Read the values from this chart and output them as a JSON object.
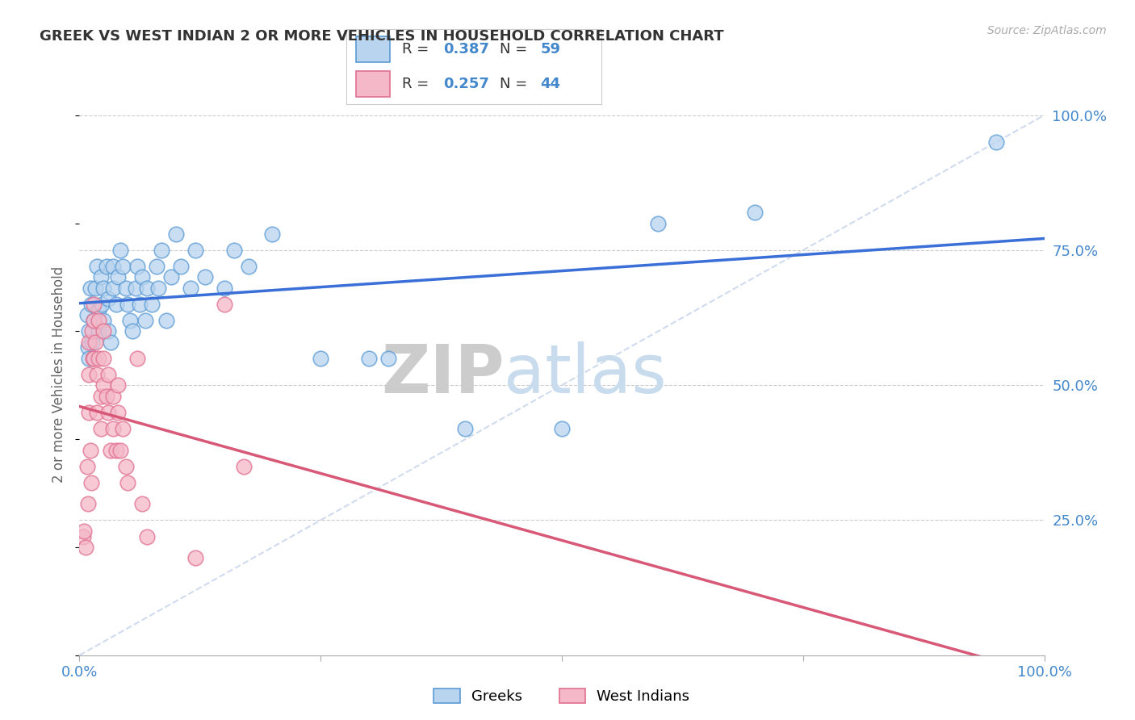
{
  "title": "GREEK VS WEST INDIAN 2 OR MORE VEHICLES IN HOUSEHOLD CORRELATION CHART",
  "source": "Source: ZipAtlas.com",
  "ylabel": "2 or more Vehicles in Household",
  "legend_greek": "Greeks",
  "legend_west": "West Indians",
  "r_greek": "0.387",
  "n_greek": "59",
  "r_west": "0.257",
  "n_west": "44",
  "color_greek_fill": "#B8D4EE",
  "color_greek_edge": "#5B9BD5",
  "color_west_fill": "#F4B8C8",
  "color_west_edge": "#E07090",
  "line_greek_color": "#3A6FD8",
  "line_west_color": "#D85878",
  "line_diag_color": "#D0DCEE",
  "greek_x": [
    0.008,
    0.009,
    0.01,
    0.01,
    0.011,
    0.012,
    0.013,
    0.015,
    0.016,
    0.018,
    0.02,
    0.02,
    0.022,
    0.023,
    0.025,
    0.025,
    0.028,
    0.03,
    0.03,
    0.032,
    0.035,
    0.035,
    0.038,
    0.04,
    0.042,
    0.045,
    0.048,
    0.05,
    0.052,
    0.055,
    0.058,
    0.06,
    0.062,
    0.065,
    0.068,
    0.07,
    0.075,
    0.08,
    0.082,
    0.085,
    0.09,
    0.095,
    0.1,
    0.105,
    0.115,
    0.12,
    0.13,
    0.15,
    0.16,
    0.175,
    0.2,
    0.25,
    0.3,
    0.32,
    0.4,
    0.5,
    0.6,
    0.7,
    0.95
  ],
  "greek_y": [
    0.63,
    0.57,
    0.6,
    0.55,
    0.68,
    0.65,
    0.58,
    0.62,
    0.68,
    0.72,
    0.6,
    0.64,
    0.7,
    0.65,
    0.62,
    0.68,
    0.72,
    0.66,
    0.6,
    0.58,
    0.72,
    0.68,
    0.65,
    0.7,
    0.75,
    0.72,
    0.68,
    0.65,
    0.62,
    0.6,
    0.68,
    0.72,
    0.65,
    0.7,
    0.62,
    0.68,
    0.65,
    0.72,
    0.68,
    0.75,
    0.62,
    0.7,
    0.78,
    0.72,
    0.68,
    0.75,
    0.7,
    0.68,
    0.75,
    0.72,
    0.78,
    0.55,
    0.55,
    0.55,
    0.42,
    0.42,
    0.8,
    0.82,
    0.95
  ],
  "west_x": [
    0.004,
    0.005,
    0.006,
    0.008,
    0.009,
    0.01,
    0.01,
    0.01,
    0.011,
    0.012,
    0.013,
    0.014,
    0.015,
    0.015,
    0.015,
    0.016,
    0.018,
    0.018,
    0.02,
    0.02,
    0.022,
    0.022,
    0.025,
    0.025,
    0.025,
    0.028,
    0.03,
    0.03,
    0.032,
    0.035,
    0.035,
    0.038,
    0.04,
    0.04,
    0.042,
    0.045,
    0.048,
    0.05,
    0.06,
    0.065,
    0.07,
    0.12,
    0.15,
    0.17
  ],
  "west_y": [
    0.22,
    0.23,
    0.2,
    0.35,
    0.28,
    0.58,
    0.52,
    0.45,
    0.38,
    0.32,
    0.6,
    0.55,
    0.65,
    0.62,
    0.55,
    0.58,
    0.52,
    0.45,
    0.62,
    0.55,
    0.48,
    0.42,
    0.6,
    0.55,
    0.5,
    0.48,
    0.52,
    0.45,
    0.38,
    0.48,
    0.42,
    0.38,
    0.5,
    0.45,
    0.38,
    0.42,
    0.35,
    0.32,
    0.55,
    0.28,
    0.22,
    0.18,
    0.65,
    0.35
  ],
  "xlim": [
    0.0,
    1.0
  ],
  "ylim": [
    0.0,
    1.04
  ],
  "yticks": [
    0.25,
    0.5,
    0.75,
    1.0
  ],
  "ytick_labels": [
    "25.0%",
    "50.0%",
    "75.0%",
    "100.0%"
  ],
  "title_fontsize": 13,
  "source_fontsize": 10,
  "tick_fontsize": 13,
  "ylabel_fontsize": 12
}
